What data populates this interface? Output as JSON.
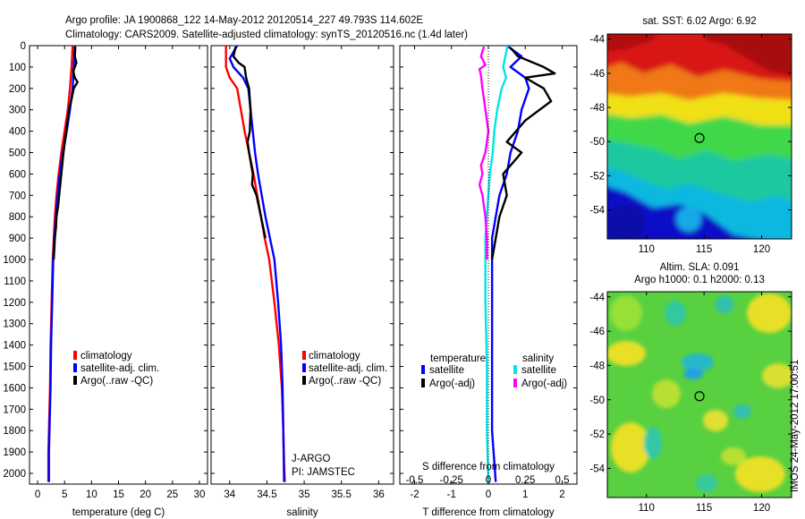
{
  "header": {
    "line1": "Argo profile: JA 1900868_122 14-May-2012 20120514_227 49.793S 114.602E",
    "line2": "Climatology: CARS2009. Satellite-adjusted climatology: synTS_20120516.nc (1.4d later)"
  },
  "colors": {
    "climatology": "#ff0000",
    "satellite": "#0000ff",
    "argo": "#000000",
    "sat_salinity": "#00e5e5",
    "argo_salinity": "#ff00ff"
  },
  "chart_data": [
    {
      "type": "line",
      "name": "temperature-profile",
      "xlabel": "temperature (deg C)",
      "xlim": [
        -1.5,
        31.5
      ],
      "xticks": [
        0,
        5,
        10,
        15,
        20,
        25,
        30
      ],
      "ylim": [
        2050,
        0
      ],
      "yticks": [
        0,
        100,
        200,
        300,
        400,
        500,
        600,
        700,
        800,
        900,
        1000,
        1100,
        1200,
        1300,
        1400,
        1500,
        1600,
        1700,
        1800,
        1900,
        2000
      ],
      "legend": [
        "climatology",
        "satellite-adj. clim.",
        "Argo(..raw -QC)"
      ],
      "series": [
        {
          "name": "climatology",
          "color": "#ff0000",
          "x": [
            6.5,
            6.3,
            6.0,
            5.6,
            5.0,
            4.4,
            3.9,
            3.5,
            3.2,
            3.0,
            2.8,
            2.6,
            2.4,
            2.3,
            2.2,
            2.1,
            2.0,
            2.0
          ],
          "y": [
            0,
            100,
            200,
            300,
            400,
            500,
            600,
            700,
            800,
            900,
            1000,
            1200,
            1400,
            1600,
            1700,
            1800,
            1900,
            2040
          ]
        },
        {
          "name": "satellite-adj. clim.",
          "color": "#0000ff",
          "x": [
            6.9,
            6.7,
            6.5,
            6.0,
            5.4,
            4.7,
            4.1,
            3.7,
            3.4,
            3.1,
            2.9,
            2.7,
            2.5,
            2.4,
            2.3,
            2.2,
            2.1,
            2.1
          ],
          "y": [
            0,
            100,
            200,
            300,
            400,
            500,
            600,
            700,
            800,
            900,
            1000,
            1200,
            1400,
            1600,
            1700,
            1800,
            1900,
            2040
          ]
        },
        {
          "name": "Argo(..raw -QC)",
          "color": "#000000",
          "x": [
            7.0,
            6.9,
            7.2,
            6.6,
            6.9,
            7.4,
            6.7,
            6.3,
            5.8,
            5.3,
            4.8,
            4.4,
            4.0,
            3.8,
            3.5,
            3.4,
            3.2,
            3.1,
            3.0
          ],
          "y": [
            5,
            50,
            80,
            120,
            150,
            170,
            200,
            250,
            300,
            400,
            500,
            600,
            700,
            750,
            800,
            850,
            900,
            950,
            1000
          ]
        }
      ]
    },
    {
      "type": "line",
      "name": "salinity-profile",
      "xlabel": "salinity",
      "xlim": [
        33.75,
        36.2
      ],
      "xticks": [
        34,
        34.5,
        35,
        35.5,
        36
      ],
      "ylim": [
        2050,
        0
      ],
      "legend": [
        "climatology",
        "satellite-adj. clim.",
        "Argo(..raw -QC)"
      ],
      "annotations": [
        "J-ARGO",
        "PI: JAMSTEC"
      ],
      "series": [
        {
          "name": "climatology",
          "color": "#ff0000",
          "x": [
            33.95,
            33.95,
            34.0,
            34.1,
            34.15,
            34.2,
            34.26,
            34.32,
            34.37,
            34.42,
            34.47,
            34.53,
            34.6,
            34.66,
            34.7,
            34.72,
            34.73,
            34.74
          ],
          "y": [
            0,
            100,
            150,
            200,
            300,
            400,
            500,
            600,
            700,
            800,
            900,
            1000,
            1200,
            1400,
            1600,
            1800,
            1950,
            2040
          ]
        },
        {
          "name": "satellite-adj. clim.",
          "color": "#0000ff",
          "x": [
            34.1,
            34.0,
            34.05,
            34.18,
            34.25,
            34.28,
            34.31,
            34.34,
            34.38,
            34.43,
            34.48,
            34.54,
            34.6,
            34.65,
            34.69,
            34.71,
            34.72,
            34.73
          ],
          "y": [
            0,
            60,
            100,
            150,
            200,
            300,
            400,
            500,
            600,
            700,
            800,
            900,
            1000,
            1200,
            1400,
            1600,
            1800,
            2040
          ]
        },
        {
          "name": "Argo(..raw -QC)",
          "color": "#000000",
          "x": [
            34.08,
            34.05,
            34.12,
            34.2,
            34.22,
            34.26,
            34.28,
            34.27,
            34.24,
            34.26,
            34.31,
            34.3,
            34.36,
            34.42,
            34.48
          ],
          "y": [
            5,
            50,
            80,
            100,
            150,
            200,
            300,
            400,
            450,
            500,
            600,
            650,
            700,
            800,
            900
          ]
        }
      ]
    },
    {
      "type": "line",
      "name": "difference-profile",
      "xlabel": "T difference from climatology",
      "xlabel_top": "S difference from climatology",
      "xlim": [
        -2.4,
        2.4
      ],
      "xticks": [
        -2,
        -1,
        0,
        1,
        2
      ],
      "xticks_s": [
        -0.5,
        -0.25,
        0,
        0.25,
        0.5
      ],
      "xticklabels_s": [
        "-0.5",
        "-0.25",
        "0",
        "0.25",
        "0.5"
      ],
      "ylim": [
        2050,
        0
      ],
      "legend_headers": [
        "temperature",
        "salinity"
      ],
      "legend": [
        "satellite",
        "Argo(-adj)",
        "satellite",
        "Argo(-adj)"
      ],
      "series": [
        {
          "name": "satellite",
          "quantity": "temperature",
          "color": "#0000ff",
          "x": [
            0.5,
            0.9,
            0.6,
            1.0,
            1.1,
            0.9,
            0.8,
            0.6,
            0.5,
            0.3,
            0.2,
            0.1,
            0.1,
            0.1,
            0.1,
            0.1,
            0.1,
            0.2
          ],
          "y": [
            0,
            50,
            100,
            150,
            200,
            300,
            400,
            500,
            600,
            700,
            800,
            900,
            1000,
            1200,
            1400,
            1600,
            1800,
            2040
          ]
        },
        {
          "name": "Argo(-adj)",
          "quantity": "temperature",
          "color": "#000000",
          "x": [
            0.6,
            0.8,
            1.5,
            1.8,
            1.0,
            1.5,
            1.7,
            1.0,
            0.5,
            0.9,
            0.4,
            0.5,
            0.3,
            0.2,
            0.1
          ],
          "y": [
            10,
            50,
            100,
            130,
            150,
            200,
            260,
            350,
            450,
            500,
            600,
            700,
            800,
            900,
            1000
          ]
        },
        {
          "name": "satellite",
          "quantity": "salinity",
          "color": "#00e5e5",
          "x": [
            0.13,
            0.1,
            0.12,
            0.09,
            0.06,
            0.04,
            0.03,
            0.01,
            0.0,
            -0.01,
            -0.02,
            -0.02,
            -0.02,
            -0.01,
            -0.01,
            0.0
          ],
          "y": [
            0,
            100,
            150,
            200,
            300,
            400,
            500,
            600,
            700,
            800,
            900,
            1000,
            1200,
            1500,
            1800,
            2040
          ]
        },
        {
          "name": "Argo(-adj)",
          "quantity": "salinity",
          "color": "#ff00ff",
          "x": [
            -0.03,
            -0.05,
            -0.02,
            -0.06,
            -0.05,
            -0.04,
            -0.02,
            0.0,
            -0.02,
            -0.03,
            -0.05,
            -0.04,
            -0.06,
            -0.04,
            -0.02,
            -0.01,
            -0.01
          ],
          "y": [
            5,
            50,
            90,
            110,
            140,
            200,
            300,
            400,
            500,
            520,
            560,
            600,
            650,
            700,
            800,
            900,
            1000
          ]
        }
      ]
    },
    {
      "type": "heatmap",
      "name": "sst-map",
      "title": "sat. SST: 6.02  Argo: 6.92",
      "xlim": [
        106.6,
        122.6
      ],
      "ylim": [
        -55.7,
        -43.7
      ],
      "xticks": [
        110,
        115,
        120
      ],
      "yticks": [
        -44,
        -46,
        -48,
        -50,
        -52,
        -54
      ],
      "marker": {
        "lon": 114.602,
        "lat": -49.793
      }
    },
    {
      "type": "heatmap",
      "name": "sla-map",
      "title_line1": "Altim. SLA: 0.091",
      "title_line2": "Argo h1000: 0.1  h2000: 0.13",
      "xlim": [
        106.6,
        122.6
      ],
      "ylim": [
        -55.7,
        -43.7
      ],
      "xticks": [
        110,
        115,
        120
      ],
      "yticks": [
        -44,
        -46,
        -48,
        -50,
        -52,
        -54
      ],
      "marker": {
        "lon": 114.602,
        "lat": -49.793
      }
    }
  ],
  "footer": {
    "stamp": "IMOS 24-May-2012 17:00:51"
  }
}
